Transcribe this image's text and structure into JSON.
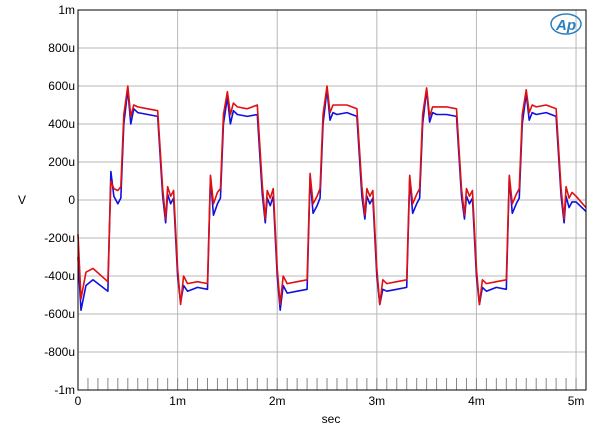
{
  "chart_data": {
    "type": "line",
    "title": "",
    "xlabel": "sec",
    "ylabel": "V",
    "xlim": [
      0,
      0.0051
    ],
    "ylim": [
      -0.001,
      0.001
    ],
    "grid": true,
    "x_ticks": [
      {
        "value": 0,
        "label": "0"
      },
      {
        "value": 0.001,
        "label": "1m"
      },
      {
        "value": 0.002,
        "label": "2m"
      },
      {
        "value": 0.003,
        "label": "3m"
      },
      {
        "value": 0.004,
        "label": "4m"
      },
      {
        "value": 0.005,
        "label": "5m"
      }
    ],
    "y_ticks": [
      {
        "value": 0.001,
        "label": "1m"
      },
      {
        "value": 0.0008,
        "label": "800u"
      },
      {
        "value": 0.0006,
        "label": "600u"
      },
      {
        "value": 0.0004,
        "label": "400u"
      },
      {
        "value": 0.0002,
        "label": "200u"
      },
      {
        "value": 0,
        "label": "0"
      },
      {
        "value": -0.0002,
        "label": "-200u"
      },
      {
        "value": -0.0004,
        "label": "-400u"
      },
      {
        "value": -0.0006,
        "label": "-600u"
      },
      {
        "value": -0.0008,
        "label": "-800u"
      },
      {
        "value": -0.001,
        "label": "-1m"
      }
    ],
    "series": [
      {
        "color": "#1010e0",
        "x": [
          0,
          3e-05,
          8e-05,
          0.00015,
          0.0003,
          0.00033,
          0.00036,
          0.0004,
          0.00043,
          0.00046,
          0.0005,
          0.00053,
          0.00056,
          0.0006,
          0.0007,
          0.0008,
          0.00085,
          0.00088,
          0.0009,
          0.00093,
          0.00096,
          0.001,
          0.00103,
          0.00106,
          0.0011,
          0.0012,
          0.0013,
          0.00133,
          0.00136,
          0.0014,
          0.00143,
          0.00146,
          0.0015,
          0.00153,
          0.00156,
          0.0016,
          0.0017,
          0.0018,
          0.00185,
          0.00188,
          0.0019,
          0.00193,
          0.00196,
          0.002,
          0.00203,
          0.00206,
          0.0021,
          0.0022,
          0.0023,
          0.00233,
          0.00236,
          0.0024,
          0.00243,
          0.00246,
          0.0025,
          0.00253,
          0.00256,
          0.0026,
          0.0027,
          0.0028,
          0.00285,
          0.00288,
          0.0029,
          0.00293,
          0.00296,
          0.003,
          0.00303,
          0.00306,
          0.0031,
          0.0032,
          0.0033,
          0.00333,
          0.00336,
          0.0034,
          0.00343,
          0.00346,
          0.0035,
          0.00353,
          0.00356,
          0.0036,
          0.0037,
          0.0038,
          0.00385,
          0.00388,
          0.0039,
          0.00393,
          0.00396,
          0.004,
          0.00403,
          0.00406,
          0.0041,
          0.0042,
          0.0043,
          0.00433,
          0.00436,
          0.0044,
          0.00443,
          0.00446,
          0.0045,
          0.00453,
          0.00456,
          0.0046,
          0.0047,
          0.0048,
          0.00485,
          0.00488,
          0.0049,
          0.00493,
          0.00496,
          0.005,
          0.0051
        ],
        "y": [
          -0.0003,
          -0.00058,
          -0.00045,
          -0.00042,
          -0.00048,
          0.00015,
          2e-05,
          -2e-05,
          1e-05,
          0.0004,
          0.00058,
          0.0004,
          0.00048,
          0.00046,
          0.00045,
          0.00044,
          2e-05,
          -0.00012,
          3e-05,
          -2e-05,
          1e-05,
          -0.0004,
          -0.00054,
          -0.00045,
          -0.00048,
          -0.00046,
          -0.00047,
          0.00012,
          -8e-05,
          -2e-05,
          1e-05,
          0.0004,
          0.00054,
          0.0004,
          0.00047,
          0.00045,
          0.00044,
          0.00045,
          3e-05,
          -0.00012,
          1e-05,
          -3e-05,
          2e-05,
          -0.0004,
          -0.00058,
          -0.00045,
          -0.00049,
          -0.00048,
          -0.00047,
          0.00012,
          -7e-05,
          -3e-05,
          1e-05,
          0.0004,
          0.00058,
          0.00042,
          0.00046,
          0.00045,
          0.00046,
          0.00044,
          2e-05,
          -0.0001,
          2e-05,
          -2e-05,
          1e-05,
          -0.0004,
          -0.00055,
          -0.00047,
          -0.00048,
          -0.00047,
          -0.00046,
          0.00011,
          -7e-05,
          -2e-05,
          1e-05,
          0.0004,
          0.00058,
          0.00041,
          0.00046,
          0.00045,
          0.00045,
          0.00044,
          2e-05,
          -0.0001,
          2e-05,
          -2e-05,
          1e-05,
          -0.0004,
          -0.00055,
          -0.00046,
          -0.00048,
          -0.00046,
          -0.00047,
          0.00012,
          -7e-05,
          -2e-05,
          1e-05,
          0.0004,
          0.00056,
          0.00042,
          0.00046,
          0.00045,
          0.00046,
          0.00044,
          2e-05,
          -0.00012,
          2e-05,
          -4e-05,
          -1e-05,
          -1e-05,
          -6e-05
        ]
      },
      {
        "color": "#e01010",
        "x": [
          0,
          3e-05,
          8e-05,
          0.00015,
          0.0003,
          0.00033,
          0.00036,
          0.0004,
          0.00043,
          0.00046,
          0.0005,
          0.00053,
          0.00056,
          0.0006,
          0.0007,
          0.0008,
          0.00085,
          0.00088,
          0.0009,
          0.00093,
          0.00096,
          0.001,
          0.00103,
          0.00106,
          0.0011,
          0.0012,
          0.0013,
          0.00133,
          0.00136,
          0.0014,
          0.00143,
          0.00146,
          0.0015,
          0.00153,
          0.00156,
          0.0016,
          0.0017,
          0.0018,
          0.00185,
          0.00188,
          0.0019,
          0.00193,
          0.00196,
          0.002,
          0.00203,
          0.00206,
          0.0021,
          0.0022,
          0.0023,
          0.00233,
          0.00236,
          0.0024,
          0.00243,
          0.00246,
          0.0025,
          0.00253,
          0.00256,
          0.0026,
          0.0027,
          0.0028,
          0.00285,
          0.00288,
          0.0029,
          0.00293,
          0.00296,
          0.003,
          0.00303,
          0.00306,
          0.0031,
          0.0032,
          0.0033,
          0.00333,
          0.00336,
          0.0034,
          0.00343,
          0.00346,
          0.0035,
          0.00353,
          0.00356,
          0.0036,
          0.0037,
          0.0038,
          0.00385,
          0.00388,
          0.0039,
          0.00393,
          0.00396,
          0.004,
          0.00403,
          0.00406,
          0.0041,
          0.0042,
          0.0043,
          0.00433,
          0.00436,
          0.0044,
          0.00443,
          0.00446,
          0.0045,
          0.00453,
          0.00456,
          0.0046,
          0.0047,
          0.0048,
          0.00485,
          0.00488,
          0.0049,
          0.00493,
          0.00496,
          0.005,
          0.0051
        ],
        "y": [
          -0.00018,
          -0.00052,
          -0.00038,
          -0.00036,
          -0.00043,
          0.0001,
          6e-05,
          5e-05,
          7e-05,
          0.00045,
          0.0006,
          0.00044,
          0.0005,
          0.00049,
          0.00048,
          0.00047,
          6e-05,
          -0.0001,
          7e-05,
          2e-05,
          5e-05,
          -0.00036,
          -0.00055,
          -0.0004,
          -0.00044,
          -0.00043,
          -0.00044,
          0.00013,
          -2e-05,
          4e-05,
          6e-05,
          0.00045,
          0.00057,
          0.00045,
          0.00051,
          0.00049,
          0.00048,
          0.0005,
          8e-05,
          -0.0001,
          5e-05,
          1e-05,
          6e-05,
          -0.00036,
          -0.00055,
          -0.0004,
          -0.00044,
          -0.00043,
          -0.00042,
          0.00014,
          -2e-05,
          2e-05,
          6e-05,
          0.00045,
          0.0006,
          0.00046,
          0.0005,
          0.0005,
          0.0005,
          0.00048,
          7e-05,
          -8e-05,
          6e-05,
          2e-05,
          5e-05,
          -0.00036,
          -0.00055,
          -0.00042,
          -0.00044,
          -0.00043,
          -0.00042,
          0.00013,
          -2e-05,
          3e-05,
          6e-05,
          0.00045,
          0.00059,
          0.00044,
          0.00049,
          0.00049,
          0.00049,
          0.00048,
          6e-05,
          -8e-05,
          6e-05,
          2e-05,
          5e-05,
          -0.00036,
          -0.00055,
          -0.00042,
          -0.00044,
          -0.00043,
          -0.00042,
          0.00013,
          -2e-05,
          3e-05,
          6e-05,
          0.00045,
          0.00058,
          0.00046,
          0.0005,
          0.00049,
          0.0005,
          0.00048,
          6e-05,
          -0.0001,
          7e-05,
          1e-05,
          4e-05,
          2e-05,
          -4e-05
        ]
      }
    ]
  },
  "logo": {
    "text": "Ap",
    "color": "#2a7fbf"
  }
}
